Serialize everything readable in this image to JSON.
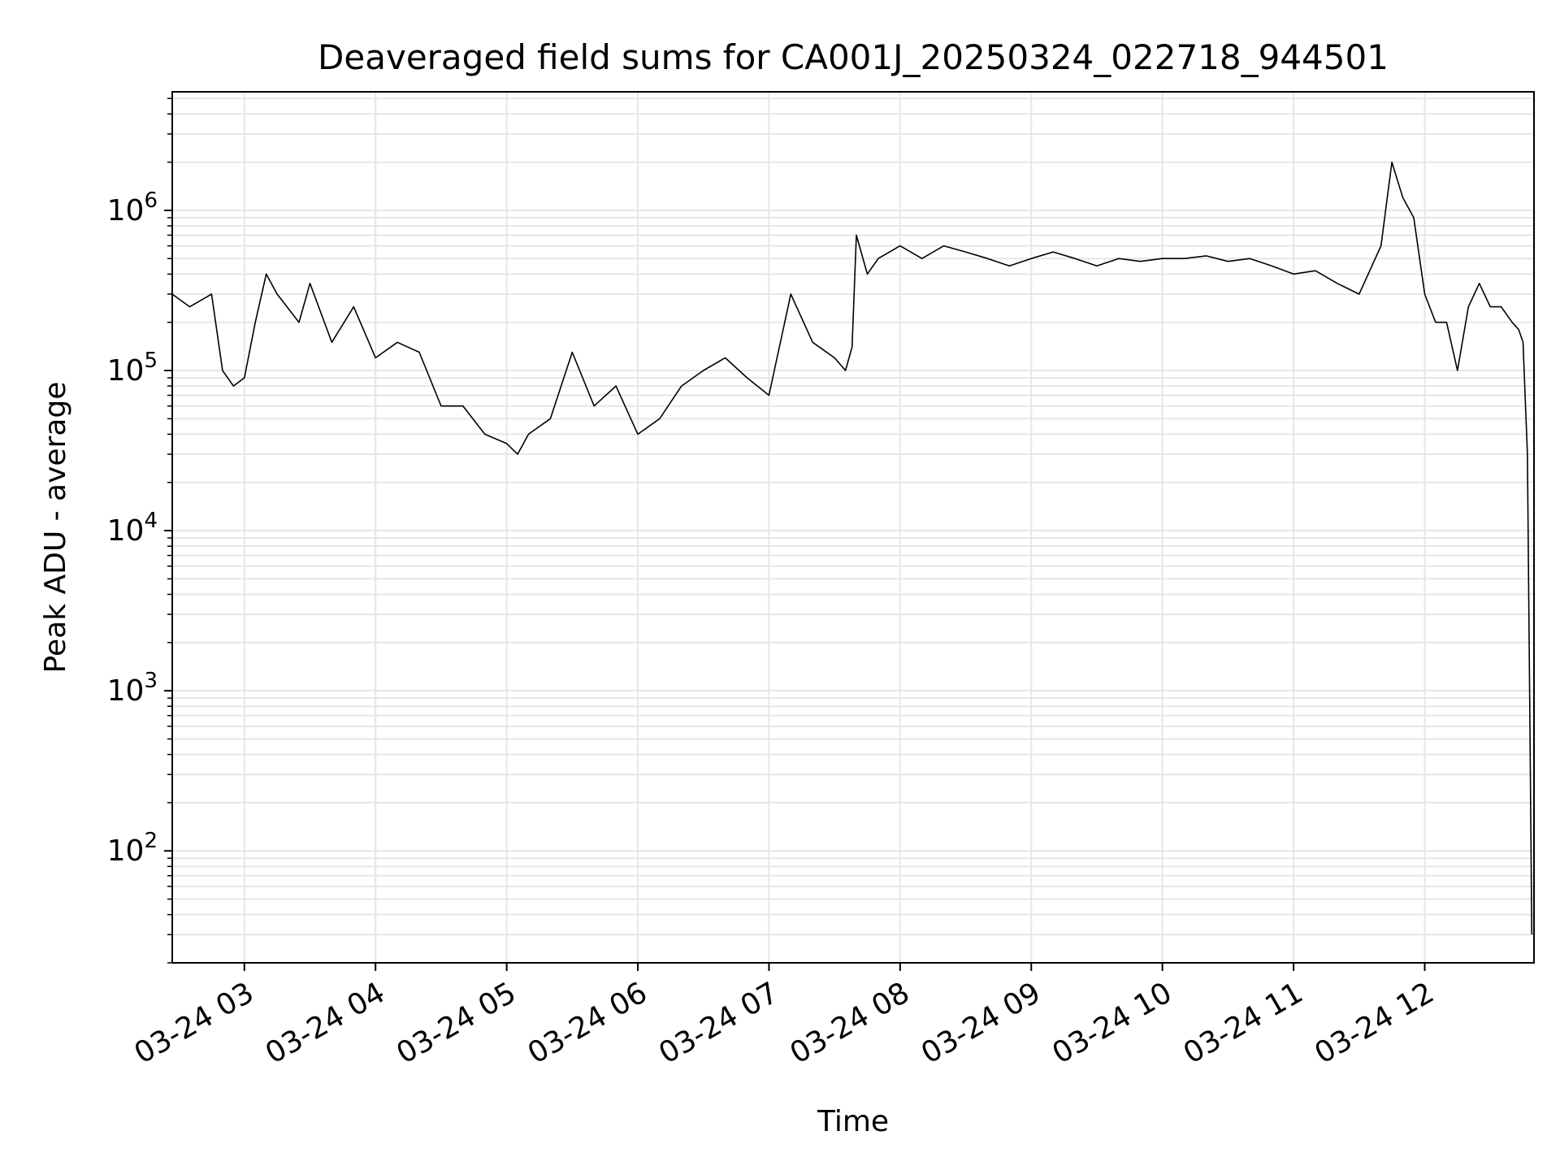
{
  "chart_data": {
    "type": "line",
    "title": "Deaveraged field sums for CA001J_20250324_022718_944501",
    "xlabel": "Time",
    "ylabel": "Peak ADU - average",
    "yscale": "log",
    "ylim": [
      20,
      5500000
    ],
    "xlim": [
      "2025-03-24 02:27",
      "2025-03-24 12:50"
    ],
    "grid": true,
    "line_color": "#000000",
    "grid_color": "#e6e6e6",
    "x_ticks": [
      {
        "value": "2025-03-24 03:00",
        "label": "03-24 03"
      },
      {
        "value": "2025-03-24 04:00",
        "label": "03-24 04"
      },
      {
        "value": "2025-03-24 05:00",
        "label": "03-24 05"
      },
      {
        "value": "2025-03-24 06:00",
        "label": "03-24 06"
      },
      {
        "value": "2025-03-24 07:00",
        "label": "03-24 07"
      },
      {
        "value": "2025-03-24 08:00",
        "label": "03-24 08"
      },
      {
        "value": "2025-03-24 09:00",
        "label": "03-24 09"
      },
      {
        "value": "2025-03-24 10:00",
        "label": "03-24 10"
      },
      {
        "value": "2025-03-24 11:00",
        "label": "03-24 11"
      },
      {
        "value": "2025-03-24 12:00",
        "label": "03-24 12"
      }
    ],
    "y_ticks": [
      {
        "value": 100,
        "base": "10",
        "exp": "2"
      },
      {
        "value": 1000,
        "base": "10",
        "exp": "3"
      },
      {
        "value": 10000,
        "base": "10",
        "exp": "4"
      },
      {
        "value": 100000,
        "base": "10",
        "exp": "5"
      },
      {
        "value": 1000000,
        "base": "10",
        "exp": "6"
      }
    ],
    "series": [
      {
        "x": [
          "2025-03-24 02:27",
          "2025-03-24 02:35",
          "2025-03-24 02:45",
          "2025-03-24 02:50",
          "2025-03-24 02:55",
          "2025-03-24 03:00",
          "2025-03-24 03:05",
          "2025-03-24 03:10",
          "2025-03-24 03:15",
          "2025-03-24 03:25",
          "2025-03-24 03:30",
          "2025-03-24 03:40",
          "2025-03-24 03:50",
          "2025-03-24 04:00",
          "2025-03-24 04:10",
          "2025-03-24 04:20",
          "2025-03-24 04:30",
          "2025-03-24 04:40",
          "2025-03-24 04:50",
          "2025-03-24 05:00",
          "2025-03-24 05:05",
          "2025-03-24 05:10",
          "2025-03-24 05:20",
          "2025-03-24 05:30",
          "2025-03-24 05:40",
          "2025-03-24 05:50",
          "2025-03-24 06:00",
          "2025-03-24 06:10",
          "2025-03-24 06:20",
          "2025-03-24 06:30",
          "2025-03-24 06:40",
          "2025-03-24 06:50",
          "2025-03-24 07:00",
          "2025-03-24 07:10",
          "2025-03-24 07:20",
          "2025-03-24 07:30",
          "2025-03-24 07:35",
          "2025-03-24 07:38",
          "2025-03-24 07:40",
          "2025-03-24 07:45",
          "2025-03-24 07:50",
          "2025-03-24 08:00",
          "2025-03-24 08:10",
          "2025-03-24 08:20",
          "2025-03-24 08:30",
          "2025-03-24 08:40",
          "2025-03-24 08:50",
          "2025-03-24 09:00",
          "2025-03-24 09:10",
          "2025-03-24 09:20",
          "2025-03-24 09:30",
          "2025-03-24 09:40",
          "2025-03-24 09:50",
          "2025-03-24 10:00",
          "2025-03-24 10:10",
          "2025-03-24 10:20",
          "2025-03-24 10:30",
          "2025-03-24 10:40",
          "2025-03-24 10:50",
          "2025-03-24 11:00",
          "2025-03-24 11:10",
          "2025-03-24 11:20",
          "2025-03-24 11:30",
          "2025-03-24 11:40",
          "2025-03-24 11:45",
          "2025-03-24 11:50",
          "2025-03-24 11:55",
          "2025-03-24 12:00",
          "2025-03-24 12:05",
          "2025-03-24 12:10",
          "2025-03-24 12:15",
          "2025-03-24 12:20",
          "2025-03-24 12:25",
          "2025-03-24 12:30",
          "2025-03-24 12:35",
          "2025-03-24 12:40",
          "2025-03-24 12:43",
          "2025-03-24 12:45",
          "2025-03-24 12:47",
          "2025-03-24 12:48",
          "2025-03-24 12:49"
        ],
        "values": [
          300000,
          250000,
          300000,
          100000,
          80000,
          90000,
          200000,
          400000,
          300000,
          200000,
          350000,
          150000,
          250000,
          120000,
          150000,
          130000,
          60000,
          60000,
          40000,
          35000,
          30000,
          40000,
          50000,
          130000,
          60000,
          80000,
          40000,
          50000,
          80000,
          100000,
          120000,
          90000,
          70000,
          300000,
          150000,
          120000,
          100000,
          140000,
          700000,
          400000,
          500000,
          600000,
          500000,
          600000,
          550000,
          500000,
          450000,
          500000,
          550000,
          500000,
          450000,
          500000,
          480000,
          500000,
          500000,
          520000,
          480000,
          500000,
          450000,
          400000,
          420000,
          350000,
          300000,
          600000,
          2000000,
          1200000,
          900000,
          300000,
          200000,
          200000,
          100000,
          250000,
          350000,
          250000,
          250000,
          200000,
          180000,
          150000,
          30000,
          1000,
          30
        ]
      }
    ]
  }
}
